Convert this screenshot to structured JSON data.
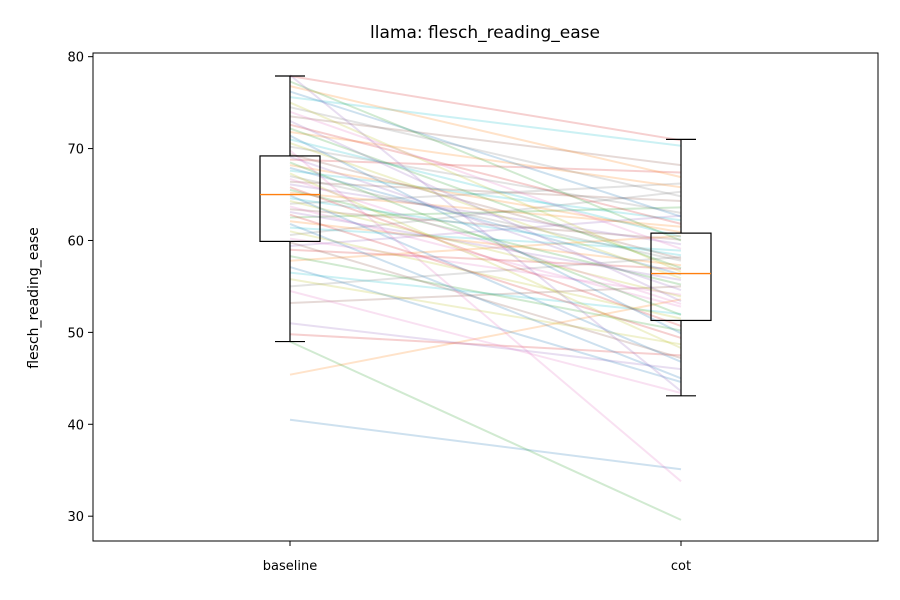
{
  "chart_data": {
    "type": "line",
    "title": "llama: flesch_reading_ease",
    "xlabel": "",
    "ylabel": "flesch_reading_ease",
    "categories": [
      "baseline",
      "cot"
    ],
    "ylim": [
      27.3,
      80.4
    ],
    "yticks": [
      30,
      40,
      50,
      60,
      70,
      80
    ],
    "grid": false,
    "legend": "none",
    "boxplots": [
      {
        "category": "baseline",
        "whisker_low": 49.0,
        "q1": 59.9,
        "median": 65.0,
        "q3": 69.2,
        "whisker_high": 77.9
      },
      {
        "category": "cot",
        "whisker_low": 43.1,
        "q1": 51.3,
        "median": 56.4,
        "q3": 60.8,
        "whisker_high": 71.0
      }
    ],
    "paired_lines": [
      [
        40.5,
        35.1
      ],
      [
        45.4,
        53.6
      ],
      [
        49.0,
        29.6
      ],
      [
        49.8,
        47.5
      ],
      [
        51.0,
        46.0
      ],
      [
        53.2,
        55.0
      ],
      [
        54.5,
        43.4
      ],
      [
        55.0,
        58.2
      ],
      [
        55.8,
        48.7
      ],
      [
        56.5,
        52.0
      ],
      [
        57.1,
        44.6
      ],
      [
        57.8,
        60.5
      ],
      [
        58.3,
        50.2
      ],
      [
        59.0,
        56.9
      ],
      [
        59.4,
        62.7
      ],
      [
        59.8,
        47.2
      ],
      [
        60.2,
        54.1
      ],
      [
        60.6,
        65.3
      ],
      [
        61.0,
        51.5
      ],
      [
        61.4,
        58.9
      ],
      [
        61.8,
        45.0
      ],
      [
        62.1,
        57.3
      ],
      [
        62.5,
        63.6
      ],
      [
        62.8,
        49.4
      ],
      [
        63.1,
        55.7
      ],
      [
        63.4,
        60.1
      ],
      [
        63.7,
        52.8
      ],
      [
        64.0,
        66.2
      ],
      [
        64.3,
        53.9
      ],
      [
        64.6,
        58.4
      ],
      [
        64.9,
        46.8
      ],
      [
        65.2,
        61.5
      ],
      [
        65.5,
        55.2
      ],
      [
        65.8,
        50.7
      ],
      [
        66.1,
        59.6
      ],
      [
        66.4,
        64.3
      ],
      [
        66.7,
        53.1
      ],
      [
        67.0,
        57.8
      ],
      [
        67.3,
        48.3
      ],
      [
        67.6,
        62.2
      ],
      [
        67.9,
        56.3
      ],
      [
        68.2,
        60.9
      ],
      [
        68.5,
        51.9
      ],
      [
        68.8,
        67.4
      ],
      [
        69.1,
        54.6
      ],
      [
        69.4,
        58.0
      ],
      [
        69.8,
        33.8
      ],
      [
        70.2,
        63.0
      ],
      [
        70.6,
        55.9
      ],
      [
        71.0,
        60.4
      ],
      [
        71.4,
        49.9
      ],
      [
        71.8,
        65.8
      ],
      [
        72.2,
        57.0
      ],
      [
        72.6,
        61.8
      ],
      [
        73.0,
        53.4
      ],
      [
        73.5,
        68.2
      ],
      [
        74.0,
        59.1
      ],
      [
        74.5,
        64.8
      ],
      [
        75.0,
        56.6
      ],
      [
        75.6,
        70.3
      ],
      [
        76.2,
        62.6
      ],
      [
        76.8,
        66.9
      ],
      [
        77.3,
        60.0
      ],
      [
        77.9,
        70.9
      ],
      [
        78.0,
        43.6
      ]
    ]
  },
  "colors": {
    "box": "#000000",
    "median": "#ff7f0e",
    "palette": [
      "#1f77b4",
      "#ff7f0e",
      "#2ca02c",
      "#d62728",
      "#9467bd",
      "#8c564b",
      "#e377c2",
      "#7f7f7f",
      "#bcbd22",
      "#17becf"
    ]
  }
}
